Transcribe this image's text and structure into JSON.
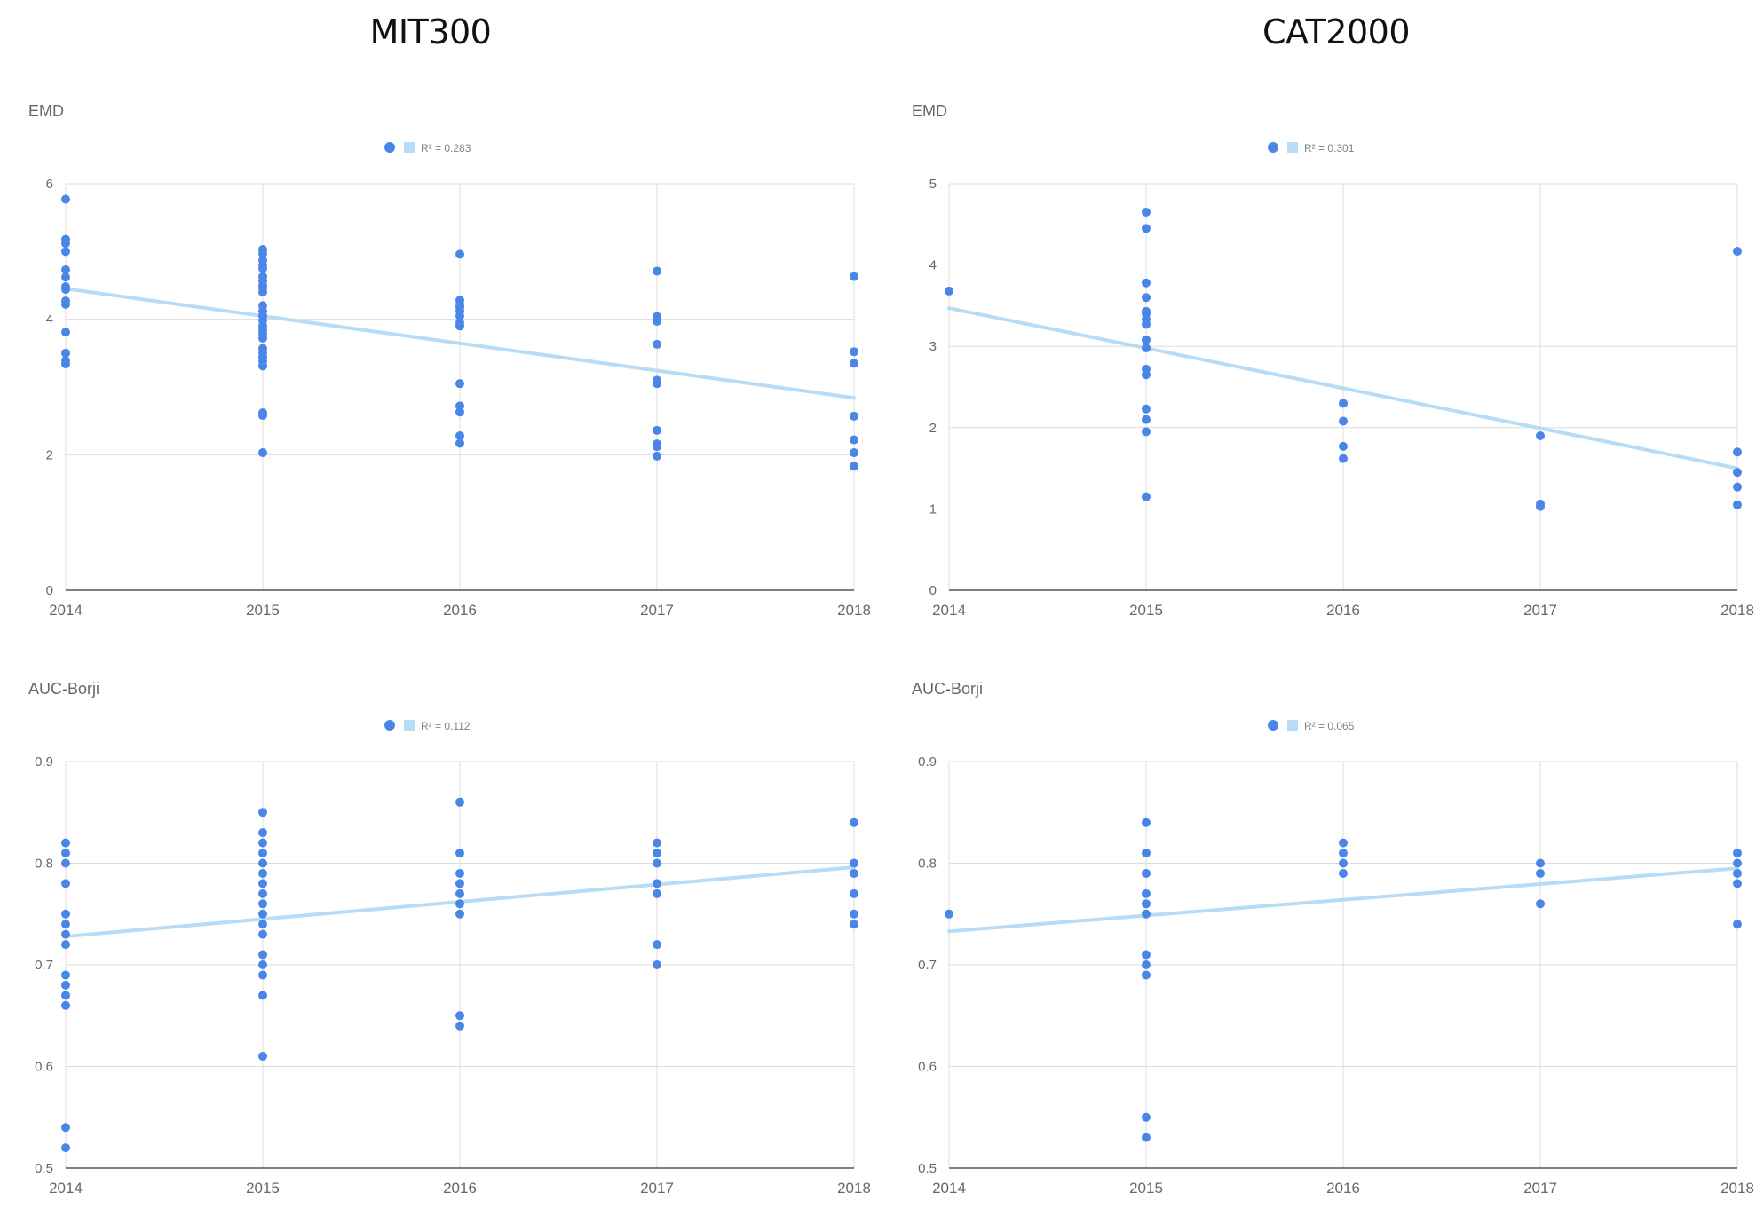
{
  "columns": {
    "left": "MIT300",
    "right": "CAT2000"
  },
  "colors": {
    "points": "#4a86e8",
    "trendline": "#b8dcf6",
    "grid": "#dcdcdc",
    "axis": "#333333"
  },
  "chart_data": [
    {
      "type": "scatter",
      "dataset": "MIT300",
      "title": "EMD",
      "legend": {
        "trendline_label": "R² = 0.283",
        "position": "top-center"
      },
      "xlim": [
        2014,
        2018
      ],
      "xticks": [
        2014,
        2015,
        2016,
        2017,
        2018
      ],
      "ylim": [
        0,
        6
      ],
      "yticks": [
        0,
        2,
        4,
        6
      ],
      "grid": true,
      "trendline": {
        "x": [
          2014,
          2018
        ],
        "y": [
          4.45,
          2.84
        ]
      },
      "points": [
        [
          2014,
          5.77
        ],
        [
          2014,
          5.18
        ],
        [
          2014,
          5.12
        ],
        [
          2014,
          5.0
        ],
        [
          2014,
          4.73
        ],
        [
          2014,
          4.62
        ],
        [
          2014,
          4.48
        ],
        [
          2014,
          4.44
        ],
        [
          2014,
          4.27
        ],
        [
          2014,
          4.22
        ],
        [
          2014,
          3.81
        ],
        [
          2014,
          3.5
        ],
        [
          2014,
          3.39
        ],
        [
          2014,
          3.34
        ],
        [
          2015,
          5.03
        ],
        [
          2015,
          4.97
        ],
        [
          2015,
          4.87
        ],
        [
          2015,
          4.8
        ],
        [
          2015,
          4.75
        ],
        [
          2015,
          4.63
        ],
        [
          2015,
          4.57
        ],
        [
          2015,
          4.5
        ],
        [
          2015,
          4.46
        ],
        [
          2015,
          4.4
        ],
        [
          2015,
          4.2
        ],
        [
          2015,
          4.12
        ],
        [
          2015,
          4.05
        ],
        [
          2015,
          3.98
        ],
        [
          2015,
          3.9
        ],
        [
          2015,
          3.84
        ],
        [
          2015,
          3.78
        ],
        [
          2015,
          3.72
        ],
        [
          2015,
          3.57
        ],
        [
          2015,
          3.5
        ],
        [
          2015,
          3.44
        ],
        [
          2015,
          3.38
        ],
        [
          2015,
          3.31
        ],
        [
          2015,
          2.62
        ],
        [
          2015,
          2.58
        ],
        [
          2015,
          2.03
        ],
        [
          2016,
          4.96
        ],
        [
          2016,
          4.28
        ],
        [
          2016,
          4.22
        ],
        [
          2016,
          4.18
        ],
        [
          2016,
          4.12
        ],
        [
          2016,
          4.05
        ],
        [
          2016,
          3.95
        ],
        [
          2016,
          3.9
        ],
        [
          2016,
          3.05
        ],
        [
          2016,
          2.72
        ],
        [
          2016,
          2.63
        ],
        [
          2016,
          2.28
        ],
        [
          2016,
          2.17
        ],
        [
          2017,
          4.71
        ],
        [
          2017,
          4.04
        ],
        [
          2017,
          3.97
        ],
        [
          2017,
          3.63
        ],
        [
          2017,
          3.1
        ],
        [
          2017,
          3.05
        ],
        [
          2017,
          2.36
        ],
        [
          2017,
          2.16
        ],
        [
          2017,
          2.12
        ],
        [
          2017,
          1.98
        ],
        [
          2018,
          4.63
        ],
        [
          2018,
          3.52
        ],
        [
          2018,
          3.35
        ],
        [
          2018,
          2.57
        ],
        [
          2018,
          2.22
        ],
        [
          2018,
          2.03
        ],
        [
          2018,
          1.83
        ]
      ]
    },
    {
      "type": "scatter",
      "dataset": "CAT2000",
      "title": "EMD",
      "legend": {
        "trendline_label": "R² = 0.301",
        "position": "top-center"
      },
      "xlim": [
        2014,
        2018
      ],
      "xticks": [
        2014,
        2015,
        2016,
        2017,
        2018
      ],
      "ylim": [
        0,
        5
      ],
      "yticks": [
        0,
        1,
        2,
        3,
        4,
        5
      ],
      "grid": true,
      "trendline": {
        "x": [
          2014,
          2018
        ],
        "y": [
          3.47,
          1.5
        ]
      },
      "points": [
        [
          2014,
          3.68
        ],
        [
          2015,
          4.65
        ],
        [
          2015,
          4.45
        ],
        [
          2015,
          3.78
        ],
        [
          2015,
          3.6
        ],
        [
          2015,
          3.43
        ],
        [
          2015,
          3.4
        ],
        [
          2015,
          3.33
        ],
        [
          2015,
          3.27
        ],
        [
          2015,
          3.08
        ],
        [
          2015,
          2.98
        ],
        [
          2015,
          2.72
        ],
        [
          2015,
          2.65
        ],
        [
          2015,
          2.23
        ],
        [
          2015,
          2.1
        ],
        [
          2015,
          1.95
        ],
        [
          2015,
          1.15
        ],
        [
          2016,
          2.3
        ],
        [
          2016,
          2.08
        ],
        [
          2016,
          1.77
        ],
        [
          2016,
          1.62
        ],
        [
          2017,
          1.9
        ],
        [
          2017,
          1.06
        ],
        [
          2017,
          1.03
        ],
        [
          2018,
          4.17
        ],
        [
          2018,
          1.7
        ],
        [
          2018,
          1.45
        ],
        [
          2018,
          1.27
        ],
        [
          2018,
          1.05
        ]
      ]
    },
    {
      "type": "scatter",
      "dataset": "MIT300",
      "title": "AUC-Borji",
      "legend": {
        "trendline_label": "R² = 0.112",
        "position": "top-center"
      },
      "xlim": [
        2014,
        2018
      ],
      "xticks": [
        2014,
        2015,
        2016,
        2017,
        2018
      ],
      "ylim": [
        0.5,
        0.9
      ],
      "yticks": [
        0.5,
        0.6,
        0.7,
        0.8,
        0.9
      ],
      "grid": true,
      "trendline": {
        "x": [
          2014,
          2018
        ],
        "y": [
          0.728,
          0.796
        ]
      },
      "points": [
        [
          2014,
          0.82
        ],
        [
          2014,
          0.81
        ],
        [
          2014,
          0.8
        ],
        [
          2014,
          0.78
        ],
        [
          2014,
          0.75
        ],
        [
          2014,
          0.74
        ],
        [
          2014,
          0.73
        ],
        [
          2014,
          0.72
        ],
        [
          2014,
          0.69
        ],
        [
          2014,
          0.68
        ],
        [
          2014,
          0.67
        ],
        [
          2014,
          0.66
        ],
        [
          2014,
          0.54
        ],
        [
          2014,
          0.52
        ],
        [
          2015,
          0.85
        ],
        [
          2015,
          0.83
        ],
        [
          2015,
          0.82
        ],
        [
          2015,
          0.81
        ],
        [
          2015,
          0.8
        ],
        [
          2015,
          0.79
        ],
        [
          2015,
          0.78
        ],
        [
          2015,
          0.77
        ],
        [
          2015,
          0.76
        ],
        [
          2015,
          0.75
        ],
        [
          2015,
          0.74
        ],
        [
          2015,
          0.73
        ],
        [
          2015,
          0.71
        ],
        [
          2015,
          0.7
        ],
        [
          2015,
          0.69
        ],
        [
          2015,
          0.67
        ],
        [
          2015,
          0.61
        ],
        [
          2016,
          0.86
        ],
        [
          2016,
          0.81
        ],
        [
          2016,
          0.79
        ],
        [
          2016,
          0.78
        ],
        [
          2016,
          0.77
        ],
        [
          2016,
          0.76
        ],
        [
          2016,
          0.75
        ],
        [
          2016,
          0.65
        ],
        [
          2016,
          0.64
        ],
        [
          2017,
          0.82
        ],
        [
          2017,
          0.81
        ],
        [
          2017,
          0.8
        ],
        [
          2017,
          0.78
        ],
        [
          2017,
          0.77
        ],
        [
          2017,
          0.72
        ],
        [
          2017,
          0.7
        ],
        [
          2018,
          0.84
        ],
        [
          2018,
          0.8
        ],
        [
          2018,
          0.79
        ],
        [
          2018,
          0.77
        ],
        [
          2018,
          0.75
        ],
        [
          2018,
          0.74
        ]
      ]
    },
    {
      "type": "scatter",
      "dataset": "CAT2000",
      "title": "AUC-Borji",
      "legend": {
        "trendline_label": "R² = 0.065",
        "position": "top-center"
      },
      "xlim": [
        2014,
        2018
      ],
      "xticks": [
        2014,
        2015,
        2016,
        2017,
        2018
      ],
      "ylim": [
        0.5,
        0.9
      ],
      "yticks": [
        0.5,
        0.6,
        0.7,
        0.8,
        0.9
      ],
      "grid": true,
      "trendline": {
        "x": [
          2014,
          2018
        ],
        "y": [
          0.733,
          0.795
        ]
      },
      "points": [
        [
          2014,
          0.75
        ],
        [
          2015,
          0.84
        ],
        [
          2015,
          0.81
        ],
        [
          2015,
          0.79
        ],
        [
          2015,
          0.77
        ],
        [
          2015,
          0.76
        ],
        [
          2015,
          0.75
        ],
        [
          2015,
          0.71
        ],
        [
          2015,
          0.7
        ],
        [
          2015,
          0.69
        ],
        [
          2015,
          0.55
        ],
        [
          2015,
          0.53
        ],
        [
          2016,
          0.82
        ],
        [
          2016,
          0.81
        ],
        [
          2016,
          0.8
        ],
        [
          2016,
          0.79
        ],
        [
          2017,
          0.8
        ],
        [
          2017,
          0.79
        ],
        [
          2017,
          0.76
        ],
        [
          2018,
          0.81
        ],
        [
          2018,
          0.8
        ],
        [
          2018,
          0.79
        ],
        [
          2018,
          0.78
        ],
        [
          2018,
          0.74
        ]
      ]
    }
  ]
}
